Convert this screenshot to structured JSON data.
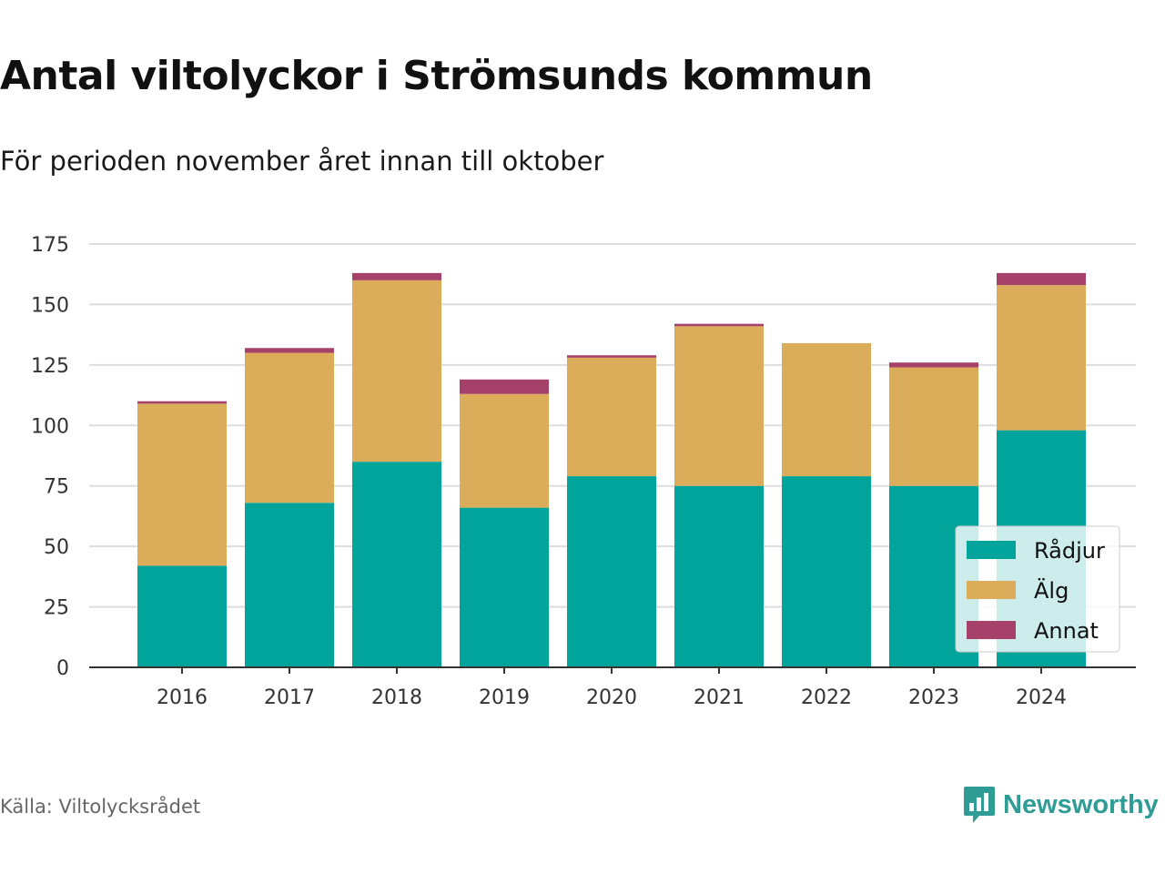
{
  "title": "Antal viltolyckor i Strömsunds kommun",
  "subtitle": "För perioden november året innan till oktober",
  "source": "Källa: Viltolycksrådet",
  "brand": {
    "name": "Newsworthy",
    "icon": "newsworthy-logo-icon",
    "color": "#2f9c96"
  },
  "chart_data": {
    "type": "bar",
    "stacked": true,
    "categories": [
      "2016",
      "2017",
      "2018",
      "2019",
      "2020",
      "2021",
      "2022",
      "2023",
      "2024"
    ],
    "series": [
      {
        "name": "Rådjur",
        "color": "#00a49a",
        "values": [
          42,
          68,
          85,
          66,
          79,
          75,
          79,
          75,
          98
        ]
      },
      {
        "name": "Älg",
        "color": "#dbac59",
        "values": [
          67,
          62,
          75,
          47,
          49,
          66,
          55,
          49,
          60
        ]
      },
      {
        "name": "Annat",
        "color": "#a6426a",
        "values": [
          1,
          2,
          3,
          6,
          1,
          1,
          0,
          2,
          5
        ]
      }
    ],
    "ylim": [
      0,
      175
    ],
    "yticks": [
      0,
      25,
      50,
      75,
      100,
      125,
      150,
      175
    ],
    "grid": true,
    "legend": "bottom-right"
  }
}
